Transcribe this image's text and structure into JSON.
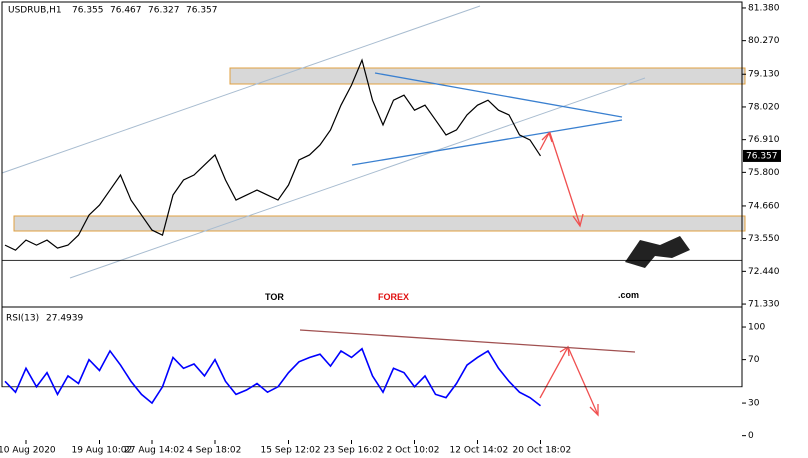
{
  "chart_data": [
    {
      "type": "line",
      "title": "USDRUB,H1",
      "ohlc": [
        76.355,
        76.467,
        76.327,
        76.357
      ],
      "categories": [
        null,
        null,
        "10 Aug 2020",
        null,
        null,
        null,
        null,
        null,
        null,
        "19 Aug 10:02",
        null,
        null,
        null,
        null,
        "27 Aug 14:02",
        null,
        null,
        null,
        null,
        null,
        "4 Sep 18:02",
        null,
        null,
        null,
        null,
        null,
        null,
        "15 Sep 12:02",
        null,
        null,
        null,
        null,
        null,
        "23 Sep 16:02",
        null,
        null,
        null,
        null,
        null,
        "2 Oct 10:02",
        null,
        null,
        null,
        null,
        null,
        "12 Oct 14:02",
        null,
        null,
        null,
        null,
        null,
        "20 Oct 18:02"
      ],
      "values": [
        73.33,
        73.16,
        73.5,
        73.33,
        73.5,
        73.23,
        73.33,
        73.67,
        74.35,
        74.69,
        75.2,
        75.71,
        74.86,
        74.35,
        73.84,
        73.67,
        75.03,
        75.54,
        75.71,
        76.05,
        76.39,
        75.54,
        74.86,
        75.03,
        75.2,
        75.03,
        74.86,
        75.37,
        76.22,
        76.39,
        76.73,
        77.24,
        78.08,
        78.76,
        79.61,
        78.25,
        77.41,
        78.25,
        78.42,
        77.91,
        78.08,
        77.58,
        77.07,
        77.24,
        77.75,
        78.08,
        78.25,
        77.91,
        77.75,
        77.07,
        76.9,
        76.357
      ],
      "color": "#000000",
      "ylim": [
        71.23,
        81.65
      ],
      "yticks": [
        {
          "value": 81.38,
          "label": "81.380"
        },
        {
          "value": 80.27,
          "label": "80.270"
        },
        {
          "value": 79.13,
          "label": "79.130"
        },
        {
          "value": 78.02,
          "label": "78.020"
        },
        {
          "value": 76.91,
          "label": "76.910"
        },
        {
          "value": 75.8,
          "label": "75.800"
        },
        {
          "value": 74.66,
          "label": "74.660"
        },
        {
          "value": 73.55,
          "label": "73.550"
        },
        {
          "value": 72.44,
          "label": "72.440"
        },
        {
          "value": 71.33,
          "label": "71.330"
        }
      ],
      "grid": false
    },
    {
      "type": "line",
      "title": "RSI(13)",
      "values": [
        50,
        40,
        62,
        45,
        58,
        38,
        55,
        48,
        70,
        60,
        78,
        65,
        50,
        38,
        30,
        45,
        72,
        62,
        66,
        55,
        70,
        50,
        38,
        42,
        48,
        40,
        45,
        58,
        68,
        72,
        75,
        64,
        78,
        72,
        80,
        55,
        40,
        62,
        58,
        45,
        55,
        38,
        35,
        48,
        65,
        72,
        78,
        62,
        50,
        40,
        35,
        27.4939
      ],
      "color": "#0000ff",
      "ylim": [
        -4,
        112
      ],
      "yticks": [
        0,
        30,
        70,
        100
      ],
      "grid": false
    }
  ],
  "watermark": {
    "part1": "TOR",
    "part2": "FOREX",
    "part3": ".com"
  }
}
